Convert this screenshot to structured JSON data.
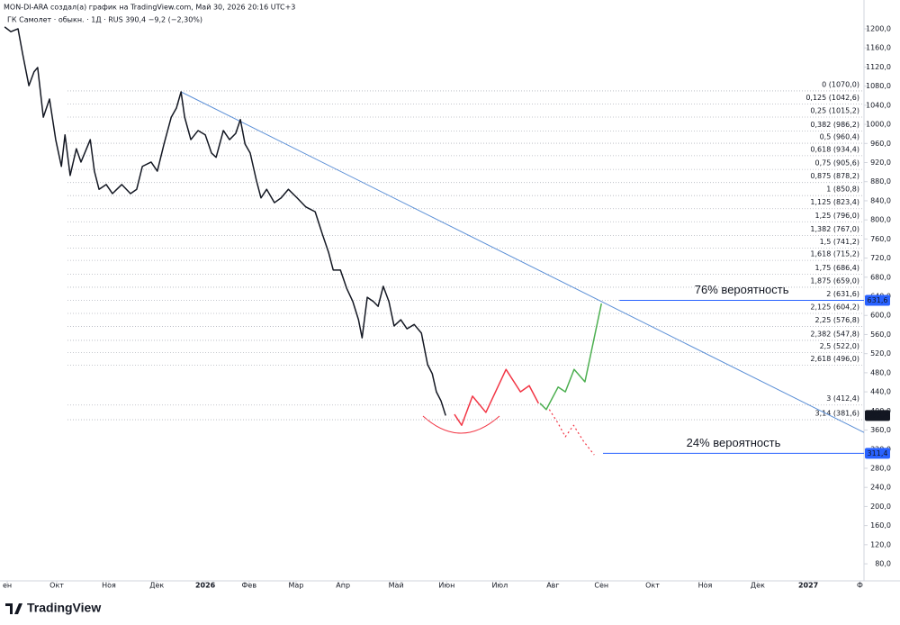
{
  "header": {
    "author_line": "MON-DI-ARA создал(а) график на TradingView.com, Май 30, 2026 20:16 UTC+3",
    "symbol_line": "ГК Самолет · обыкн. · 1Д · RUS  390,4  −9,2 (−2,30%)"
  },
  "footer": {
    "logo": "TradingView"
  },
  "chart_data": {
    "type": "line",
    "xlim": [
      -0.14,
      16.61
    ],
    "xticks": [
      {
        "value": 0,
        "label": "ен"
      },
      {
        "value": 0.96,
        "label": "Окт"
      },
      {
        "value": 1.97,
        "label": "Ноя"
      },
      {
        "value": 2.9,
        "label": "Дек"
      },
      {
        "value": 3.84,
        "label": "2026"
      },
      {
        "value": 4.69,
        "label": "Фев"
      },
      {
        "value": 5.6,
        "label": "Мар"
      },
      {
        "value": 6.51,
        "label": "Апр"
      },
      {
        "value": 7.54,
        "label": "Май"
      },
      {
        "value": 8.52,
        "label": "Июн"
      },
      {
        "value": 9.55,
        "label": "Июл"
      },
      {
        "value": 10.58,
        "label": "Авг"
      },
      {
        "value": 11.52,
        "label": "Сен"
      },
      {
        "value": 12.51,
        "label": "Окт"
      },
      {
        "value": 13.53,
        "label": "Ноя"
      },
      {
        "value": 14.55,
        "label": "Дек"
      },
      {
        "value": 15.53,
        "label": "2027"
      },
      {
        "value": 16.53,
        "label": "Ф"
      }
    ],
    "ylim": [
      44.3,
      1260.3
    ],
    "yticks": [
      {
        "value": 80,
        "label": "80,0"
      },
      {
        "value": 120,
        "label": "120,0"
      },
      {
        "value": 160,
        "label": "160,0"
      },
      {
        "value": 200,
        "label": "200,0"
      },
      {
        "value": 240,
        "label": "240,0"
      },
      {
        "value": 280,
        "label": "280,0"
      },
      {
        "value": 320,
        "label": "320,0"
      },
      {
        "value": 360,
        "label": "360,0"
      },
      {
        "value": 400,
        "label": "400,0"
      },
      {
        "value": 440,
        "label": "440,0"
      },
      {
        "value": 480,
        "label": "480,0"
      },
      {
        "value": 520,
        "label": "520,0"
      },
      {
        "value": 560,
        "label": "560,0"
      },
      {
        "value": 600,
        "label": "600,0"
      },
      {
        "value": 640,
        "label": "640,0"
      },
      {
        "value": 680,
        "label": "680,0"
      },
      {
        "value": 720,
        "label": "720,0"
      },
      {
        "value": 760,
        "label": "760,0"
      },
      {
        "value": 800,
        "label": "800,0"
      },
      {
        "value": 840,
        "label": "840,0"
      },
      {
        "value": 880,
        "label": "880,0"
      },
      {
        "value": 920,
        "label": "920,0"
      },
      {
        "value": 960,
        "label": "960,0"
      },
      {
        "value": 1000,
        "label": "1000,0"
      },
      {
        "value": 1040,
        "label": "1040,0"
      },
      {
        "value": 1080,
        "label": "1080,0"
      },
      {
        "value": 1120,
        "label": "1120,0"
      },
      {
        "value": 1160,
        "label": "1160,0"
      },
      {
        "value": 1200,
        "label": "1200,0"
      }
    ],
    "series": [
      {
        "color": "#131722",
        "style": "solid",
        "x": [
          -0.05,
          0.07,
          0.21,
          0.3,
          0.42,
          0.52,
          0.59,
          0.7,
          0.82,
          0.94,
          1.05,
          1.12,
          1.22,
          1.34,
          1.43,
          1.61,
          1.69,
          1.78,
          1.92,
          2.04,
          2.22,
          2.39,
          2.51,
          2.62,
          2.79,
          2.91,
          3.04,
          3.18,
          3.28,
          3.37,
          3.44,
          3.56,
          3.7,
          3.84,
          3.96,
          4.05,
          4.19,
          4.31,
          4.43,
          4.52,
          4.61,
          4.71,
          4.83,
          4.92,
          5.03,
          5.18,
          5.31,
          5.45,
          5.62,
          5.79,
          5.97,
          6.11,
          6.23,
          6.32,
          6.46,
          6.58,
          6.7,
          6.81,
          6.88,
          6.98,
          7.1,
          7.19,
          7.29,
          7.4,
          7.5,
          7.63,
          7.75,
          7.89,
          8.03,
          8.15,
          8.24,
          8.32,
          8.41,
          8.5
        ],
        "values": [
          1204,
          1194,
          1200,
          1147,
          1081,
          1110,
          1119,
          1015,
          1053,
          968,
          912,
          978,
          893,
          949,
          921,
          968,
          902,
          864,
          874,
          855,
          874,
          855,
          864,
          912,
          921,
          902,
          959,
          1015,
          1034,
          1068,
          1015,
          968,
          987,
          978,
          940,
          931,
          987,
          968,
          981,
          1010,
          959,
          940,
          883,
          846,
          864,
          836,
          846,
          864,
          846,
          827,
          817,
          770,
          732,
          695,
          695,
          657,
          629,
          591,
          553,
          638,
          629,
          619,
          661,
          629,
          578,
          591,
          572,
          581,
          563,
          497,
          478,
          440,
          421,
          390.4
        ]
      },
      {
        "color": "#f23645",
        "style": "solid",
        "x": [
          8.67,
          8.81,
          9.02,
          9.28,
          9.67,
          9.95,
          10.12,
          10.3
        ],
        "values": [
          393,
          370,
          431,
          397,
          487,
          440,
          453,
          416
        ]
      },
      {
        "color": "#4caf50",
        "style": "solid",
        "x": [
          10.33,
          10.45,
          10.68,
          10.82,
          10.99,
          11.2,
          11.52
        ],
        "values": [
          416,
          403,
          450,
          440,
          487,
          461,
          625
        ]
      },
      {
        "color": "#f23645",
        "style": "dotted",
        "x": [
          10.51,
          10.68,
          10.82,
          10.98,
          11.17,
          11.38
        ],
        "values": [
          403,
          374,
          346,
          370,
          337,
          308
        ]
      }
    ],
    "trendline": {
      "color": "#5b8fd6",
      "x": [
        3.37,
        16.61
      ],
      "values": [
        1068,
        355
      ]
    },
    "fib_levels": [
      {
        "value": 1070,
        "label": "0 (1070,0)"
      },
      {
        "value": 1042.6,
        "label": "0,125 (1042,6)"
      },
      {
        "value": 1015.2,
        "label": "0,25 (1015,2)"
      },
      {
        "value": 986.2,
        "label": "0,382 (986,2)"
      },
      {
        "value": 960.4,
        "label": "0,5 (960,4)"
      },
      {
        "value": 934.4,
        "label": "0,618 (934,4)"
      },
      {
        "value": 905.6,
        "label": "0,75 (905,6)"
      },
      {
        "value": 878.2,
        "label": "0,875 (878,2)"
      },
      {
        "value": 850.8,
        "label": "1 (850,8)"
      },
      {
        "value": 823.4,
        "label": "1,125 (823,4)"
      },
      {
        "value": 796.0,
        "label": "1,25 (796,0)"
      },
      {
        "value": 767.0,
        "label": "1,382 (767,0)"
      },
      {
        "value": 741.2,
        "label": "1,5 (741,2)"
      },
      {
        "value": 715.2,
        "label": "1,618 (715,2)"
      },
      {
        "value": 686.4,
        "label": "1,75 (686,4)"
      },
      {
        "value": 659.0,
        "label": "1,875 (659,0)"
      },
      {
        "value": 631.6,
        "label": "2 (631,6)"
      },
      {
        "value": 604.2,
        "label": "2,125 (604,2)"
      },
      {
        "value": 576.8,
        "label": "2,25 (576,8)"
      },
      {
        "value": 547.8,
        "label": "2,382 (547,8)"
      },
      {
        "value": 522.0,
        "label": "2,5 (522,0)"
      },
      {
        "value": 496.0,
        "label": "2,618 (496,0)"
      },
      {
        "value": 412.4,
        "label": "3 (412,4)"
      },
      {
        "value": 381.6,
        "label": "3,14 (381,6)"
      }
    ],
    "target_lines": [
      {
        "value": 631.6,
        "label": "631,6",
        "x": [
          11.87,
          16.61
        ],
        "color": "#2962ff",
        "note": "76% вероятность"
      },
      {
        "value": 311.4,
        "label": "311,4",
        "x": [
          11.55,
          16.61
        ],
        "color": "#2962ff",
        "note": "24% вероятность"
      }
    ],
    "last_price": {
      "value": 390.4,
      "label": "390,4"
    }
  }
}
